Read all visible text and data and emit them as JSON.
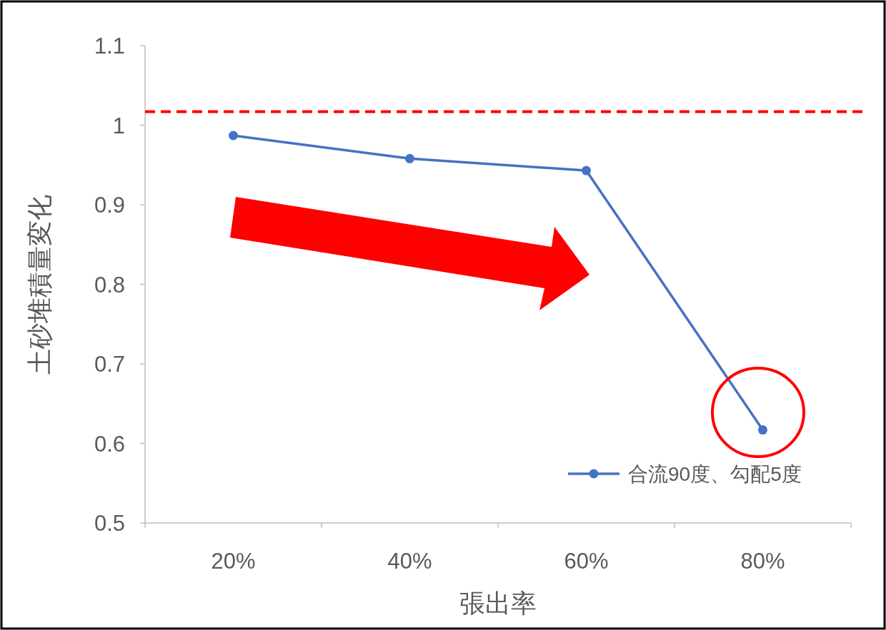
{
  "chart_data": {
    "type": "line",
    "xlabel": "張出率",
    "ylabel": "土砂堆積量変化",
    "categories": [
      "20%",
      "40%",
      "60%",
      "80%"
    ],
    "series": [
      {
        "name": "合流90度、勾配5度",
        "color": "#4472c4",
        "values": [
          0.987,
          0.958,
          0.943,
          0.617
        ]
      }
    ],
    "ylim": [
      0.5,
      1.1
    ],
    "yticks": [
      0.5,
      0.6,
      0.7,
      0.8,
      0.9,
      1,
      1.1
    ],
    "ref_lines": [
      {
        "axis": "y",
        "value": 1.017,
        "color": "#ff0000",
        "line_style": "dashed"
      }
    ],
    "marker": "circle",
    "legend": "bottom right",
    "grid": false
  }
}
